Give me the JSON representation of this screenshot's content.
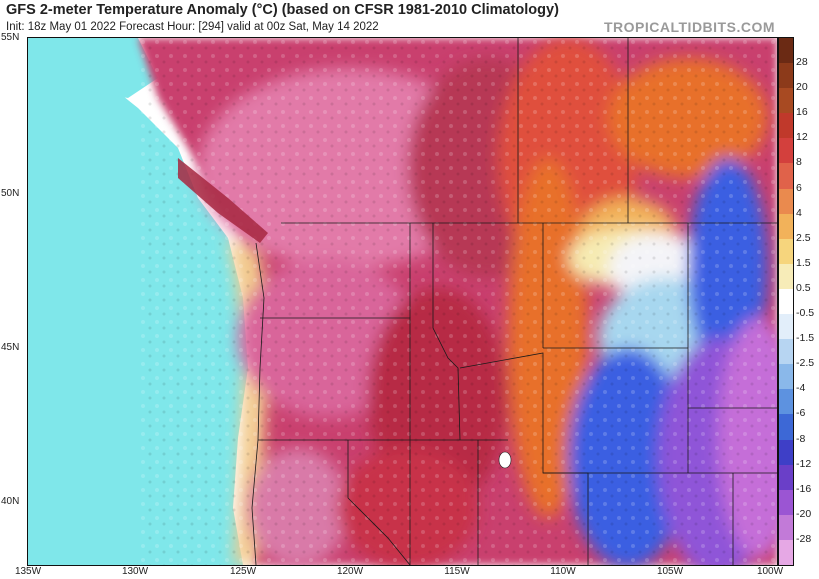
{
  "header": {
    "title": "GFS 2-meter Temperature Anomaly (°C) (based on CFSR 1981-2010 Climatology)",
    "subtitle": "Init: 18z May 01 2022   Forecast Hour: [294]   valid at 00z Sat, May 14 2022",
    "brand": "TROPICALTIDBITS.COM"
  },
  "map": {
    "lat_labels": [
      "55N",
      "50N",
      "45N",
      "40N"
    ],
    "lon_labels": [
      "135W",
      "130W",
      "125W",
      "120W",
      "115W",
      "110W",
      "105W",
      "100W"
    ],
    "colors": {
      "ocean": "#7fe7ea",
      "coast_warm": "#f2c98a",
      "pink": "#e27aa8",
      "rose": "#cc4f7e",
      "red": "#b72b45",
      "orange": "#e8702c",
      "light_yellow": "#f6ebb2",
      "white": "#f4f4f8",
      "light_blue": "#a7d7ef",
      "blue": "#3a5fe2",
      "purple": "#8f55d8",
      "magenta": "#c56ed8"
    }
  },
  "colorbar": {
    "labels": [
      "28",
      "20",
      "16",
      "12",
      "8",
      "6",
      "4",
      "2.5",
      "1.5",
      "0.5",
      "-0.5",
      "-1.5",
      "-2.5",
      "-4",
      "-6",
      "-8",
      "-12",
      "-16",
      "-20",
      "-28"
    ],
    "colors": [
      "#6b2a14",
      "#8c3a1a",
      "#a84a22",
      "#c0392b",
      "#d3403d",
      "#e0624a",
      "#ea8a4e",
      "#f2b25a",
      "#f6d57d",
      "#f7ecb8",
      "#ffffff",
      "#e2eefa",
      "#b7d5f2",
      "#8ab8ea",
      "#5d92e0",
      "#3d68d6",
      "#3e3fc7",
      "#6a3fc8",
      "#9b55d3",
      "#c27ad8",
      "#e6a8e5"
    ]
  }
}
